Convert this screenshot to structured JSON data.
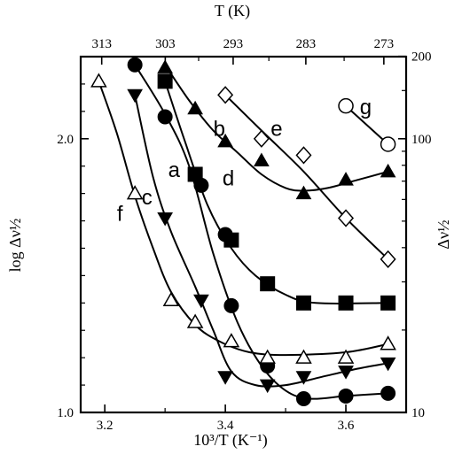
{
  "chart_data": {
    "type": "scatter",
    "xlabel": "10³/T (K⁻¹)",
    "ylabel": "log Δν½",
    "top_xlabel": "T (K)",
    "right_ylabel": "Δν½",
    "xlim": [
      3.16,
      3.7
    ],
    "ylim": [
      1.0,
      2.3
    ],
    "x_ticks": [
      {
        "value": 3.2,
        "label": "3.2"
      },
      {
        "value": 3.4,
        "label": "3.4"
      },
      {
        "value": 3.6,
        "label": "3.6"
      }
    ],
    "y_ticks": [
      {
        "value": 1.0,
        "label": "1.0"
      },
      {
        "value": 2.0,
        "label": "2.0"
      }
    ],
    "top_ticks": [
      {
        "value": 313,
        "label": "313"
      },
      {
        "value": 303,
        "label": "303"
      },
      {
        "value": 293,
        "label": "293"
      },
      {
        "value": 283,
        "label": "283"
      },
      {
        "value": 273,
        "label": "273"
      }
    ],
    "right_ticks": [
      {
        "value": 10,
        "label": "10"
      },
      {
        "value": 100,
        "label": "100"
      },
      {
        "value": 200,
        "label": "200"
      }
    ],
    "grid": false,
    "legend": "none",
    "series": [
      {
        "name": "a",
        "marker": "filled-circle",
        "points": [
          [
            3.25,
            2.27
          ],
          [
            3.3,
            2.08
          ],
          [
            3.36,
            1.83
          ],
          [
            3.4,
            1.65
          ],
          [
            3.41,
            1.39
          ],
          [
            3.47,
            1.17
          ],
          [
            3.53,
            1.05
          ],
          [
            3.6,
            1.06
          ],
          [
            3.67,
            1.07
          ]
        ],
        "curve": [
          [
            3.25,
            2.27
          ],
          [
            3.3,
            2.09
          ],
          [
            3.34,
            1.9
          ],
          [
            3.38,
            1.58
          ],
          [
            3.42,
            1.33
          ],
          [
            3.46,
            1.17
          ],
          [
            3.5,
            1.08
          ],
          [
            3.54,
            1.05
          ],
          [
            3.6,
            1.06
          ],
          [
            3.67,
            1.07
          ]
        ]
      },
      {
        "name": "b",
        "marker": "filled-triangle-up",
        "points": [
          [
            3.3,
            2.26
          ],
          [
            3.35,
            2.11
          ],
          [
            3.4,
            1.99
          ],
          [
            3.46,
            1.92
          ],
          [
            3.53,
            1.8
          ],
          [
            3.6,
            1.85
          ],
          [
            3.67,
            1.88
          ]
        ],
        "curve": [
          [
            3.3,
            2.27
          ],
          [
            3.34,
            2.14
          ],
          [
            3.38,
            2.03
          ],
          [
            3.42,
            1.95
          ],
          [
            3.46,
            1.87
          ],
          [
            3.5,
            1.82
          ],
          [
            3.53,
            1.81
          ],
          [
            3.57,
            1.82
          ],
          [
            3.62,
            1.85
          ],
          [
            3.67,
            1.88
          ]
        ]
      },
      {
        "name": "c",
        "marker": "filled-triangle-down",
        "points": [
          [
            3.25,
            2.16
          ],
          [
            3.3,
            1.71
          ],
          [
            3.36,
            1.41
          ],
          [
            3.4,
            1.13
          ],
          [
            3.47,
            1.1
          ],
          [
            3.53,
            1.13
          ],
          [
            3.6,
            1.15
          ],
          [
            3.67,
            1.18
          ]
        ],
        "curve": [
          [
            3.25,
            2.16
          ],
          [
            3.28,
            1.86
          ],
          [
            3.31,
            1.66
          ],
          [
            3.35,
            1.46
          ],
          [
            3.38,
            1.3
          ],
          [
            3.41,
            1.15
          ],
          [
            3.45,
            1.1
          ],
          [
            3.5,
            1.1
          ],
          [
            3.56,
            1.13
          ],
          [
            3.62,
            1.16
          ],
          [
            3.67,
            1.18
          ]
        ]
      },
      {
        "name": "d",
        "marker": "filled-square",
        "points": [
          [
            3.3,
            2.21
          ],
          [
            3.35,
            1.87
          ],
          [
            3.41,
            1.63
          ],
          [
            3.47,
            1.47
          ],
          [
            3.53,
            1.4
          ],
          [
            3.6,
            1.4
          ],
          [
            3.67,
            1.4
          ]
        ],
        "curve": [
          [
            3.3,
            2.21
          ],
          [
            3.33,
            2.01
          ],
          [
            3.37,
            1.76
          ],
          [
            3.41,
            1.6
          ],
          [
            3.45,
            1.5
          ],
          [
            3.5,
            1.43
          ],
          [
            3.55,
            1.4
          ],
          [
            3.67,
            1.4
          ]
        ]
      },
      {
        "name": "e",
        "marker": "open-diamond",
        "points": [
          [
            3.4,
            2.16
          ],
          [
            3.46,
            2.0
          ],
          [
            3.53,
            1.94
          ],
          [
            3.6,
            1.71
          ],
          [
            3.67,
            1.56
          ]
        ],
        "curve": [
          [
            3.4,
            2.16
          ],
          [
            3.46,
            2.03
          ],
          [
            3.53,
            1.88
          ],
          [
            3.6,
            1.71
          ],
          [
            3.67,
            1.56
          ]
        ]
      },
      {
        "name": "f",
        "marker": "open-triangle-up",
        "points": [
          [
            3.19,
            2.21
          ],
          [
            3.25,
            1.8
          ],
          [
            3.31,
            1.41
          ],
          [
            3.35,
            1.33
          ],
          [
            3.41,
            1.26
          ],
          [
            3.47,
            1.2
          ],
          [
            3.53,
            1.2
          ],
          [
            3.6,
            1.2
          ],
          [
            3.67,
            1.25
          ]
        ],
        "curve": [
          [
            3.19,
            2.21
          ],
          [
            3.22,
            2.02
          ],
          [
            3.25,
            1.79
          ],
          [
            3.28,
            1.6
          ],
          [
            3.31,
            1.44
          ],
          [
            3.35,
            1.32
          ],
          [
            3.39,
            1.26
          ],
          [
            3.44,
            1.22
          ],
          [
            3.5,
            1.21
          ],
          [
            3.6,
            1.22
          ],
          [
            3.67,
            1.25
          ]
        ]
      },
      {
        "name": "g",
        "marker": "open-circle",
        "points": [
          [
            3.6,
            2.12
          ],
          [
            3.67,
            1.98
          ]
        ],
        "curve": [
          [
            3.6,
            2.12
          ],
          [
            3.67,
            1.98
          ]
        ]
      }
    ],
    "curve_labels": [
      {
        "text": "a",
        "x": 3.315,
        "y": 1.86
      },
      {
        "text": "b",
        "x": 3.39,
        "y": 2.01
      },
      {
        "text": "c",
        "x": 3.27,
        "y": 1.76
      },
      {
        "text": "d",
        "x": 3.405,
        "y": 1.83
      },
      {
        "text": "e",
        "x": 3.485,
        "y": 2.01
      },
      {
        "text": "f",
        "x": 3.225,
        "y": 1.7
      },
      {
        "text": "g",
        "x": 3.633,
        "y": 2.09
      }
    ]
  }
}
